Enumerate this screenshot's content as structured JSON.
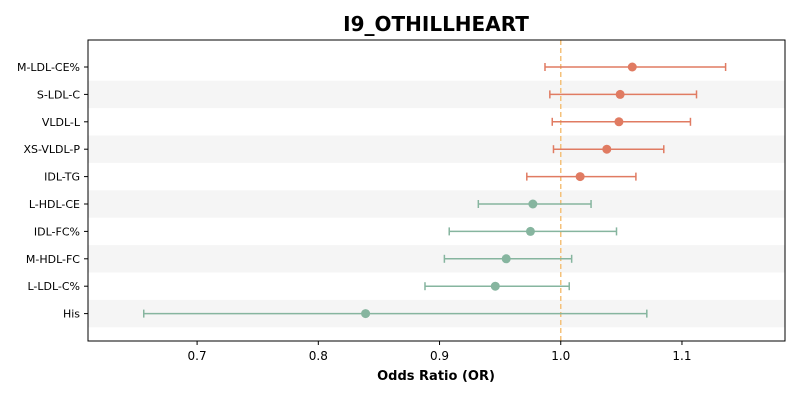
{
  "chart_data": {
    "type": "forest",
    "title": "I9_OTHILLHEART",
    "xlabel": "Odds Ratio (OR)",
    "ylabel": "",
    "xlim": [
      0.61,
      1.185
    ],
    "xticks": [
      0.7,
      0.8,
      0.9,
      1.0,
      1.1
    ],
    "reference_line": 1.0,
    "alternate_row_shading": true,
    "grid": false,
    "colors": {
      "above_one": "#e07b62",
      "below_one": "#86b59f",
      "reference": "#f4c17a",
      "row_shade": "#f5f5f5"
    },
    "rows": [
      {
        "label": "M-LDL-CE%",
        "or": 1.059,
        "ci_low": 0.987,
        "ci_high": 1.136
      },
      {
        "label": "S-LDL-C",
        "or": 1.049,
        "ci_low": 0.991,
        "ci_high": 1.112
      },
      {
        "label": "VLDL-L",
        "or": 1.048,
        "ci_low": 0.993,
        "ci_high": 1.107
      },
      {
        "label": "XS-VLDL-P",
        "or": 1.038,
        "ci_low": 0.994,
        "ci_high": 1.085
      },
      {
        "label": "IDL-TG",
        "or": 1.016,
        "ci_low": 0.972,
        "ci_high": 1.062
      },
      {
        "label": "L-HDL-CE",
        "or": 0.977,
        "ci_low": 0.932,
        "ci_high": 1.025
      },
      {
        "label": "IDL-FC%",
        "or": 0.975,
        "ci_low": 0.908,
        "ci_high": 1.046
      },
      {
        "label": "M-HDL-FC",
        "or": 0.955,
        "ci_low": 0.904,
        "ci_high": 1.009
      },
      {
        "label": "L-LDL-C%",
        "or": 0.946,
        "ci_low": 0.888,
        "ci_high": 1.007
      },
      {
        "label": "His",
        "or": 0.839,
        "ci_low": 0.656,
        "ci_high": 1.071
      }
    ]
  }
}
